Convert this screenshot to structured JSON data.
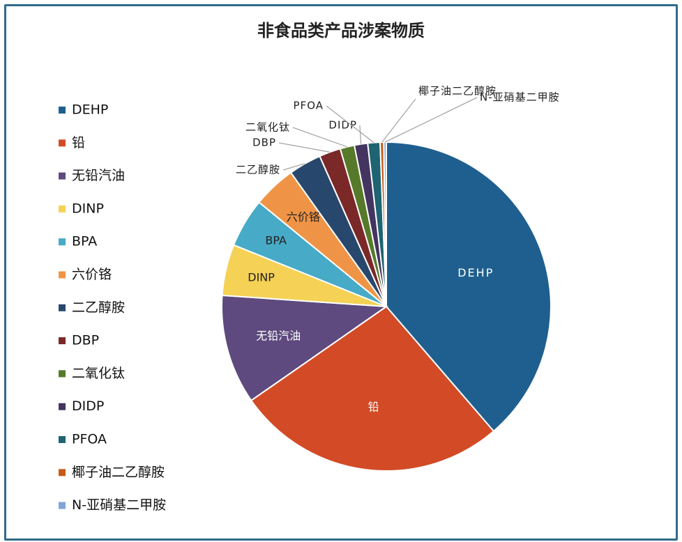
{
  "chart_data": {
    "type": "pie",
    "title": "非食品类产品涉案物质",
    "legend_position": "left",
    "slices": [
      {
        "label": "DEHP",
        "value": 38.5,
        "color": "#1f5f8f"
      },
      {
        "label": "铅",
        "value": 26.5,
        "color": "#d24b26"
      },
      {
        "label": "无铅汽油",
        "value": 10.7,
        "color": "#5e4a7e"
      },
      {
        "label": "DINP",
        "value": 5.0,
        "color": "#f5d155"
      },
      {
        "label": "BPA",
        "value": 4.8,
        "color": "#47aac6"
      },
      {
        "label": "六价铬",
        "value": 4.2,
        "color": "#ef9446"
      },
      {
        "label": "二乙醇胺",
        "value": 3.2,
        "color": "#28476c"
      },
      {
        "label": "DBP",
        "value": 2.1,
        "color": "#7b2828"
      },
      {
        "label": "二氧化钛",
        "value": 1.4,
        "color": "#567a2a"
      },
      {
        "label": "DIDP",
        "value": 1.3,
        "color": "#433460"
      },
      {
        "label": "PFOA",
        "value": 1.2,
        "color": "#1e6472"
      },
      {
        "label": "椰子油二乙醇胺",
        "value": 0.35,
        "color": "#c65a19"
      },
      {
        "label": "N-亚硝基二甲胺",
        "value": 0.25,
        "color": "#7ea6d8"
      }
    ]
  }
}
